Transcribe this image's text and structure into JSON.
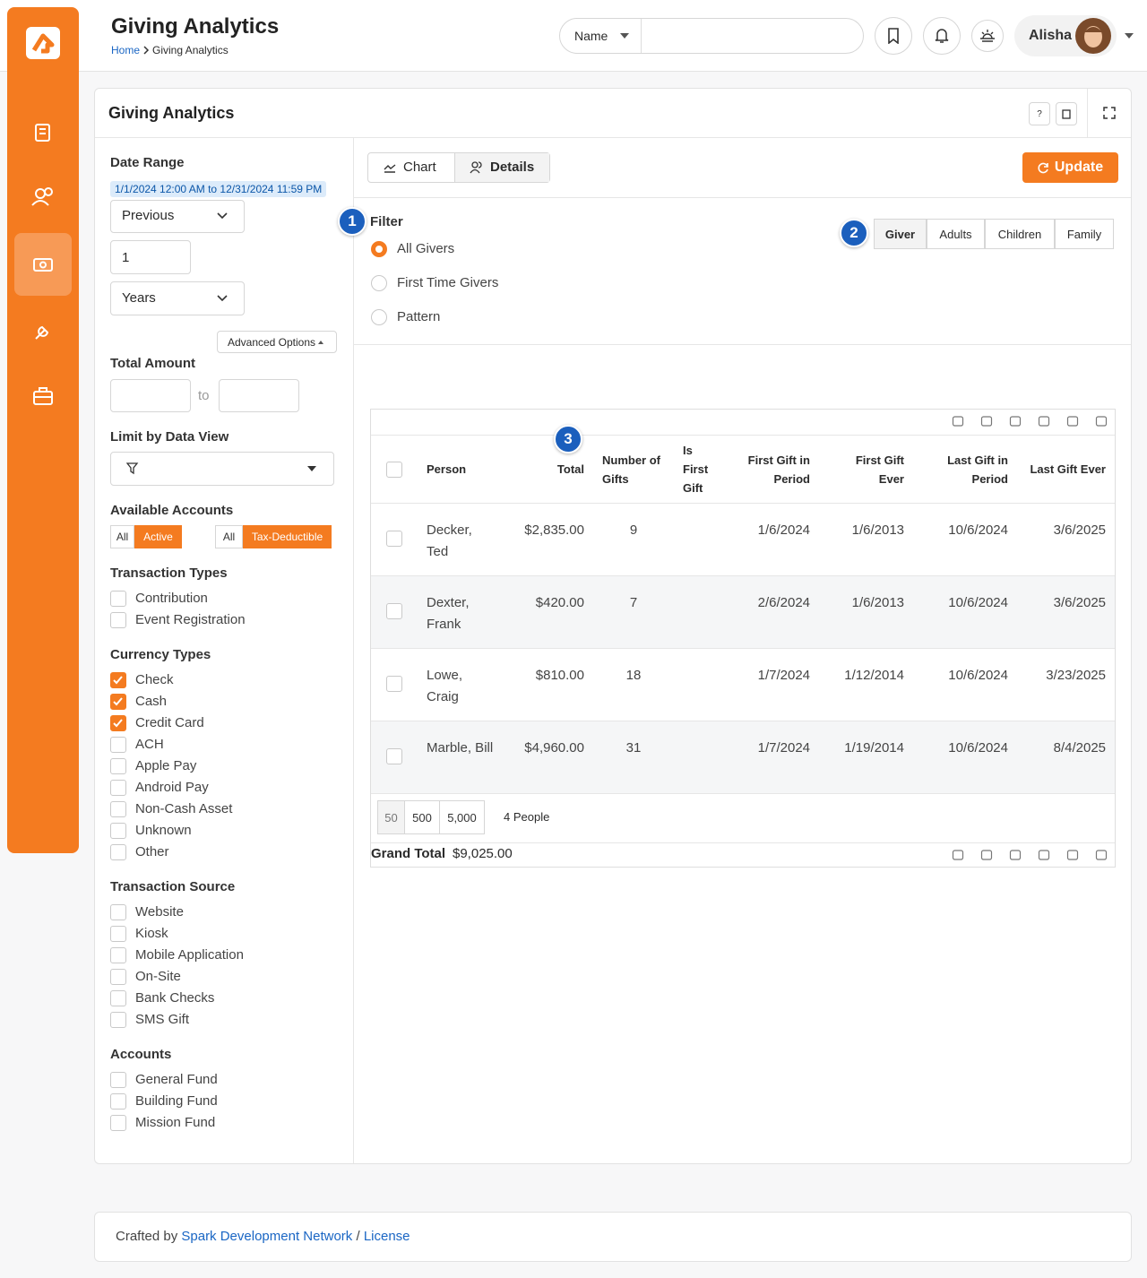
{
  "header": {
    "title": "Giving Analytics",
    "breadcrumb": [
      "Home",
      "Giving Analytics"
    ],
    "search_type": "Name",
    "user": "Alisha"
  },
  "panel": {
    "title": "Giving Analytics",
    "help": "?"
  },
  "filters": {
    "date_range": {
      "label": "Date Range",
      "summary": "1/1/2024 12:00 AM to 12/31/2024 11:59 PM",
      "mode": "Previous",
      "count": "1",
      "unit": "Years"
    },
    "advanced_options": "Advanced Options",
    "total_amount": {
      "label": "Total Amount",
      "to": "to"
    },
    "data_view": {
      "label": "Limit by Data View"
    },
    "available_accounts": {
      "label": "Available Accounts",
      "status": [
        "All",
        "Active"
      ],
      "tax": [
        "All",
        "Tax-Deductible"
      ]
    },
    "groups": [
      {
        "label": "Transaction Types",
        "options": [
          {
            "label": "Contribution",
            "checked": false
          },
          {
            "label": "Event Registration",
            "checked": false
          }
        ]
      },
      {
        "label": "Currency Types",
        "options": [
          {
            "label": "Check",
            "checked": true
          },
          {
            "label": "Cash",
            "checked": true
          },
          {
            "label": "Credit Card",
            "checked": true
          },
          {
            "label": "ACH",
            "checked": false
          },
          {
            "label": "Apple Pay",
            "checked": false
          },
          {
            "label": "Android Pay",
            "checked": false
          },
          {
            "label": "Non-Cash Asset",
            "checked": false
          },
          {
            "label": "Unknown",
            "checked": false
          },
          {
            "label": "Other",
            "checked": false
          }
        ]
      },
      {
        "label": "Transaction Source",
        "options": [
          {
            "label": "Website",
            "checked": false
          },
          {
            "label": "Kiosk",
            "checked": false
          },
          {
            "label": "Mobile Application",
            "checked": false
          },
          {
            "label": "On-Site",
            "checked": false
          },
          {
            "label": "Bank Checks",
            "checked": false
          },
          {
            "label": "SMS Gift",
            "checked": false
          }
        ]
      },
      {
        "label": "Accounts",
        "options": [
          {
            "label": "General Fund",
            "checked": false
          },
          {
            "label": "Building Fund",
            "checked": false
          },
          {
            "label": "Mission Fund",
            "checked": false
          }
        ]
      }
    ]
  },
  "tabs": [
    "Chart",
    "Details"
  ],
  "update": "Update",
  "filter": {
    "label": "Filter",
    "options": [
      "All Givers",
      "First Time Givers",
      "Pattern"
    ],
    "selected": 0
  },
  "view_toggle": {
    "options": [
      "Giver",
      "Adults",
      "Children",
      "Family"
    ],
    "selected": 0
  },
  "callouts": [
    "1",
    "2",
    "3"
  ],
  "table": {
    "columns": [
      "Person",
      "Total",
      "Number of Gifts",
      "Is First Gift",
      "First Gift in Period",
      "First Gift Ever",
      "Last Gift in Period",
      "Last Gift Ever"
    ],
    "rows": [
      {
        "person": "Decker, Ted",
        "total": "$2,835.00",
        "gifts": "9",
        "first_in_period": "1/6/2024",
        "first_ever": "1/6/2013",
        "last_in_period": "10/6/2024",
        "last_ever": "3/6/2025"
      },
      {
        "person": "Dexter, Frank",
        "total": "$420.00",
        "gifts": "7",
        "first_in_period": "2/6/2024",
        "first_ever": "1/6/2013",
        "last_in_period": "10/6/2024",
        "last_ever": "3/6/2025"
      },
      {
        "person": "Lowe, Craig",
        "total": "$810.00",
        "gifts": "18",
        "first_in_period": "1/7/2024",
        "first_ever": "1/12/2014",
        "last_in_period": "10/6/2024",
        "last_ever": "3/23/2025"
      },
      {
        "person": "Marble, Bill",
        "total": "$4,960.00",
        "gifts": "31",
        "first_in_period": "1/7/2024",
        "first_ever": "1/19/2014",
        "last_in_period": "10/6/2024",
        "last_ever": "8/4/2025"
      }
    ],
    "page_sizes": [
      "50",
      "500",
      "5,000"
    ],
    "count": "4 People",
    "grand_total": {
      "label": "Grand Total",
      "value": "$9,025.00"
    }
  },
  "footer": {
    "prefix": "Crafted by",
    "link": "Spark Development Network",
    "separator": "/",
    "license": "License"
  }
}
